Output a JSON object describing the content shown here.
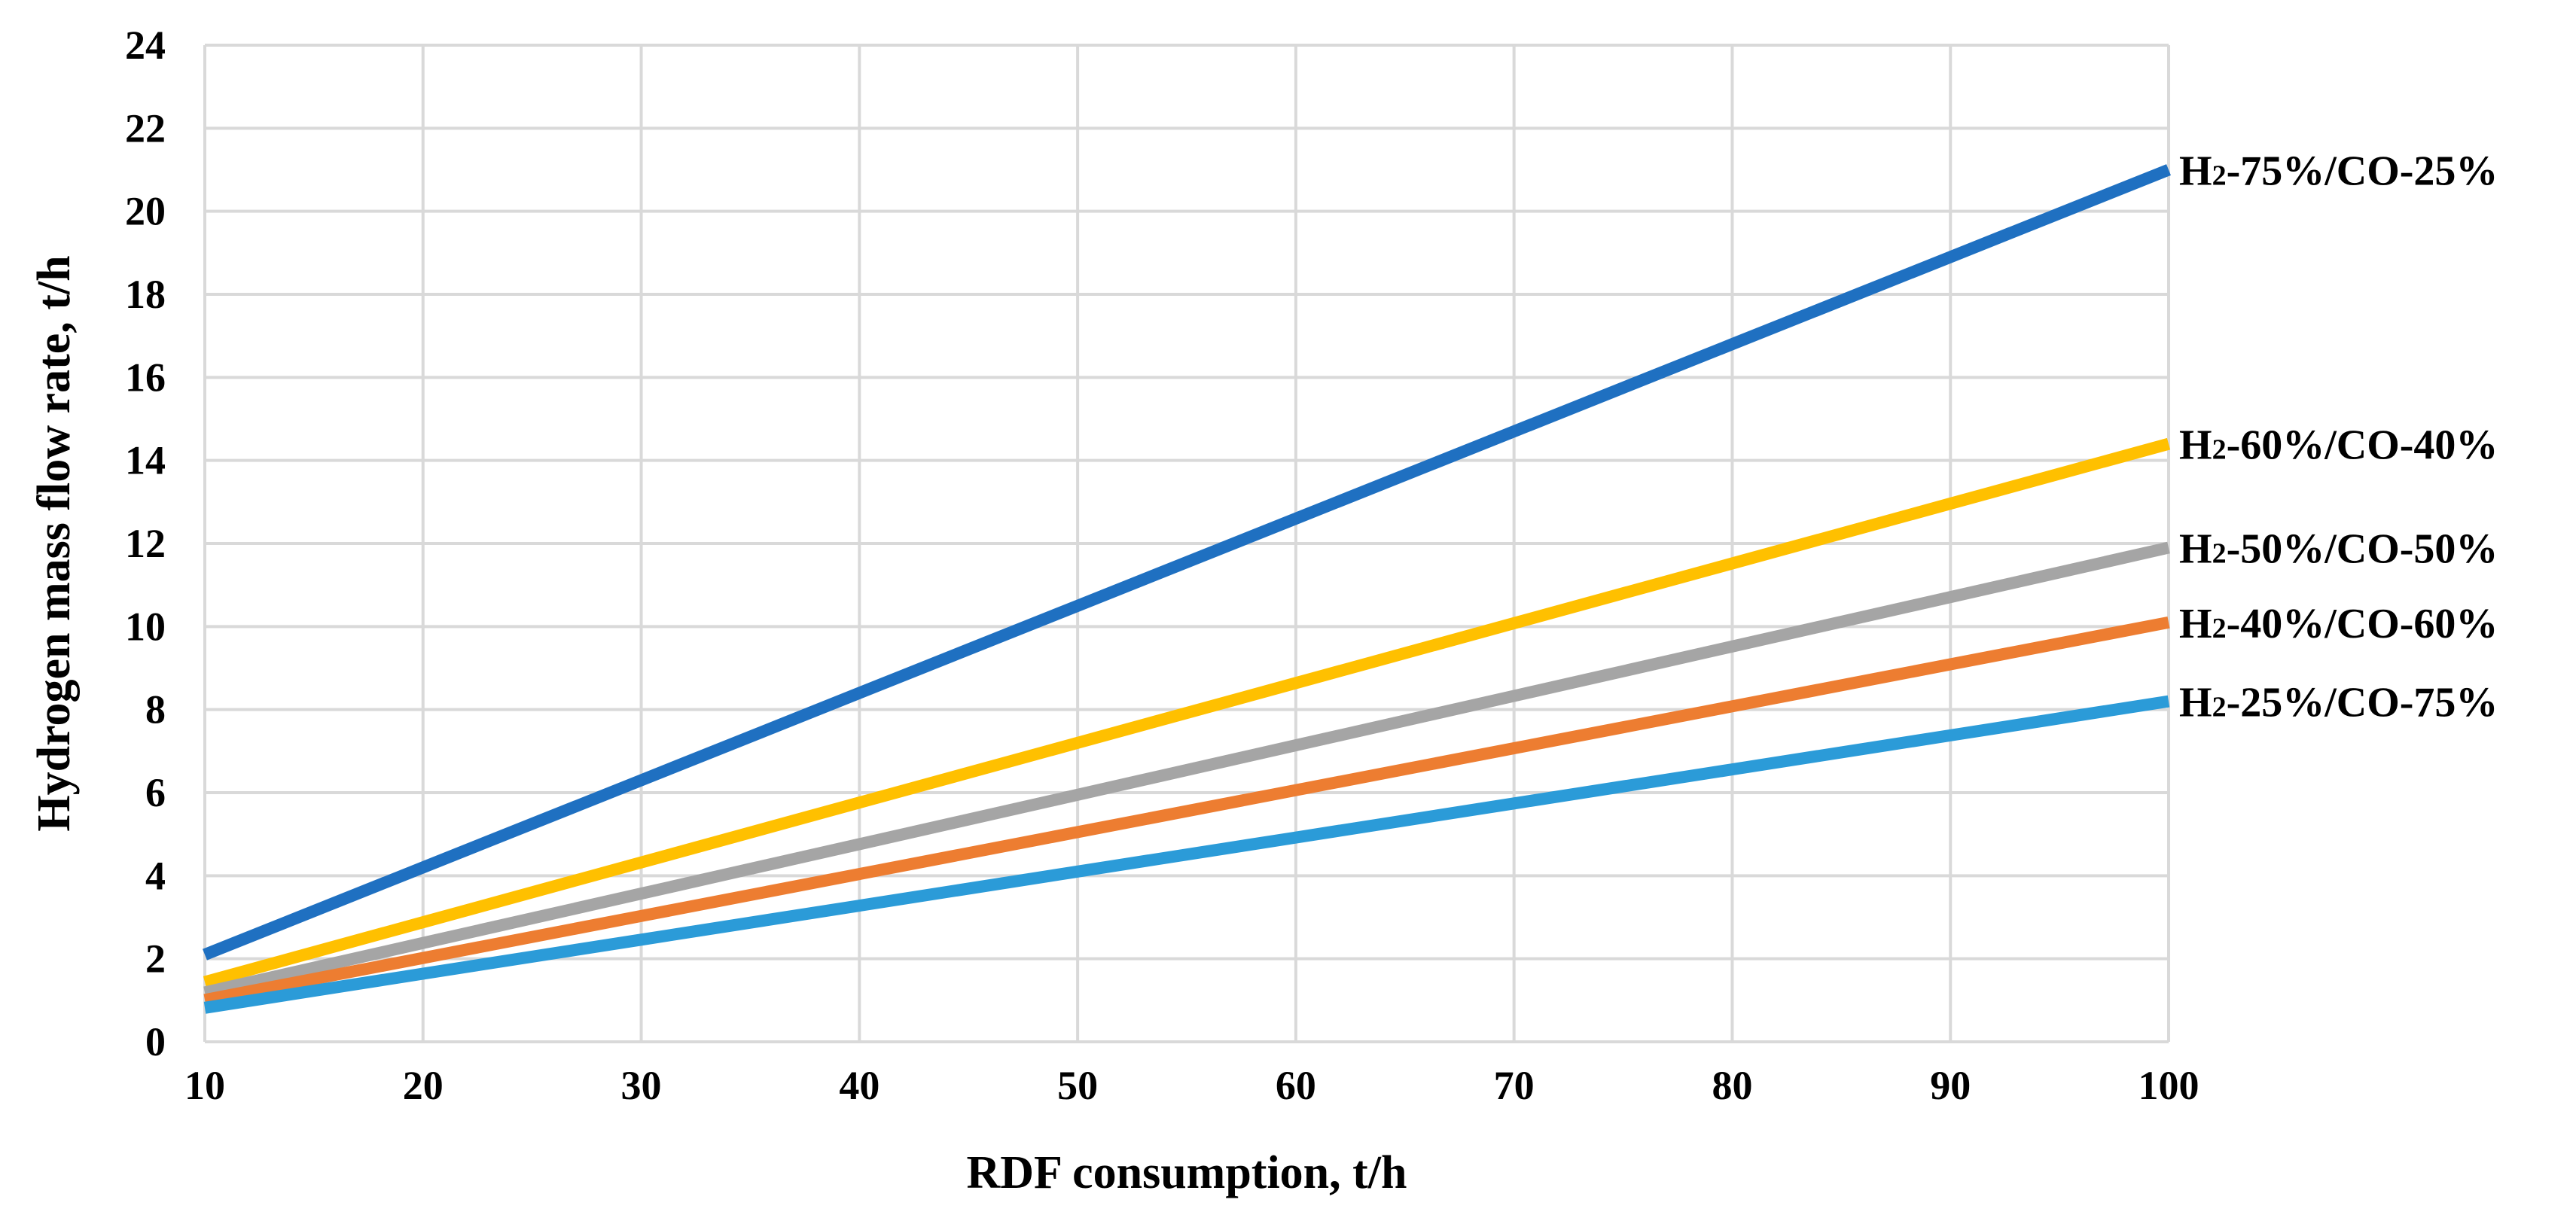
{
  "chart_data": {
    "type": "line",
    "title": "",
    "xlabel": "RDF consumption, t/h",
    "ylabel": "Hydrogen mass flow rate, t/h",
    "x": [
      10,
      20,
      30,
      40,
      50,
      60,
      70,
      80,
      90,
      100
    ],
    "xlim": [
      10,
      100
    ],
    "ylim": [
      0,
      24
    ],
    "xticks": [
      10,
      20,
      30,
      40,
      50,
      60,
      70,
      80,
      90,
      100
    ],
    "yticks": [
      0,
      2,
      4,
      6,
      8,
      10,
      12,
      14,
      16,
      18,
      20,
      22,
      24
    ],
    "grid": true,
    "legend": "inline labels at right end of each line",
    "series": [
      {
        "name": "H2-75%/CO-25%",
        "label_main": "H",
        "label_sub": "2",
        "label_rest": "-75%/CO-25%",
        "color": "#1f70c1",
        "values": [
          2.1,
          4.2,
          6.3,
          8.4,
          10.5,
          12.6,
          14.7,
          16.8,
          18.9,
          21.0
        ]
      },
      {
        "name": "H2-60%/CO-40%",
        "label_main": "H",
        "label_sub": "2",
        "label_rest": "-60%/CO-40%",
        "color": "#ffc000",
        "values": [
          1.44,
          2.88,
          4.32,
          5.76,
          7.2,
          8.64,
          10.08,
          11.52,
          12.96,
          14.4
        ]
      },
      {
        "name": "H2-50%/CO-50%",
        "label_main": "H",
        "label_sub": "2",
        "label_rest": "-50%/CO-50%",
        "color": "#a5a5a5",
        "values": [
          1.19,
          2.38,
          3.57,
          4.76,
          5.95,
          7.14,
          8.33,
          9.52,
          10.71,
          11.9
        ]
      },
      {
        "name": "H2-40%/CO-60%",
        "label_main": "H",
        "label_sub": "2",
        "label_rest": "-40%/CO-60%",
        "color": "#ed7d31",
        "values": [
          1.01,
          2.02,
          3.03,
          4.04,
          5.05,
          6.06,
          7.07,
          8.08,
          9.09,
          10.1
        ]
      },
      {
        "name": "H2-25%/CO-75%",
        "label_main": "H",
        "label_sub": "2",
        "label_rest": "-25%/CO-75%",
        "color": "#2b9bd8",
        "values": [
          0.82,
          1.64,
          2.46,
          3.28,
          4.1,
          4.92,
          5.74,
          6.56,
          7.38,
          8.2
        ]
      }
    ]
  }
}
